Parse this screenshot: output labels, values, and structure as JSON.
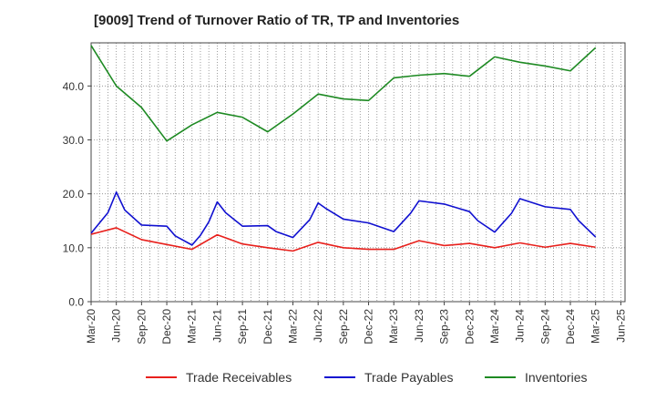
{
  "chart_data": {
    "type": "line",
    "title": "[9009]  Trend of Turnover Ratio of TR, TP and Inventories",
    "xlabel": "",
    "ylabel": "",
    "ylim": [
      0,
      48
    ],
    "yticks": [
      "0.0",
      "10.0",
      "20.0",
      "30.0",
      "40.0"
    ],
    "ytick_values": [
      0,
      10,
      20,
      30,
      40
    ],
    "xtick_labels": [
      "Mar-20",
      "Jun-20",
      "Sep-20",
      "Dec-20",
      "Mar-21",
      "Jun-21",
      "Sep-21",
      "Dec-21",
      "Mar-22",
      "Jun-22",
      "Sep-22",
      "Dec-22",
      "Mar-23",
      "Jun-23",
      "Sep-23",
      "Dec-23",
      "Mar-24",
      "Jun-24",
      "Sep-24",
      "Dec-24",
      "Mar-25",
      "Jun-25"
    ],
    "x": [
      "2020-03",
      "2020-04",
      "2020-05",
      "2020-06",
      "2020-07",
      "2020-08",
      "2020-09",
      "2020-10",
      "2020-11",
      "2020-12",
      "2021-01",
      "2021-02",
      "2021-03",
      "2021-04",
      "2021-05",
      "2021-06",
      "2021-07",
      "2021-08",
      "2021-09",
      "2021-10",
      "2021-11",
      "2021-12",
      "2022-01",
      "2022-02",
      "2022-03",
      "2022-04",
      "2022-05",
      "2022-06",
      "2022-07",
      "2022-08",
      "2022-09",
      "2022-10",
      "2022-11",
      "2022-12",
      "2023-01",
      "2023-02",
      "2023-03",
      "2023-04",
      "2023-05",
      "2023-06",
      "2023-07",
      "2023-08",
      "2023-09",
      "2023-10",
      "2023-11",
      "2023-12",
      "2024-01",
      "2024-02",
      "2024-03",
      "2024-04",
      "2024-05",
      "2024-06",
      "2024-07",
      "2024-08",
      "2024-09",
      "2024-10",
      "2024-11",
      "2024-12",
      "2025-01",
      "2025-02",
      "2025-03",
      "2025-04",
      "2025-05",
      "2025-06"
    ],
    "grid": true,
    "legend_position": "bottom",
    "series": [
      {
        "name": "Trade Receivables",
        "color": "#e8201c",
        "points": [
          [
            "2020-03",
            12.5
          ],
          [
            "2020-06",
            13.7
          ],
          [
            "2020-09",
            11.5
          ],
          [
            "2020-12",
            10.6
          ],
          [
            "2021-03",
            9.7
          ],
          [
            "2021-06",
            12.4
          ],
          [
            "2021-09",
            10.7
          ],
          [
            "2021-12",
            10.0
          ],
          [
            "2022-03",
            9.4
          ],
          [
            "2022-06",
            11.0
          ],
          [
            "2022-09",
            10.0
          ],
          [
            "2022-12",
            9.7
          ],
          [
            "2023-03",
            9.7
          ],
          [
            "2023-06",
            11.3
          ],
          [
            "2023-09",
            10.4
          ],
          [
            "2023-12",
            10.8
          ],
          [
            "2024-03",
            10.0
          ],
          [
            "2024-06",
            10.9
          ],
          [
            "2024-09",
            10.1
          ],
          [
            "2024-12",
            10.8
          ],
          [
            "2025-03",
            10.1
          ]
        ]
      },
      {
        "name": "Trade Payables",
        "color": "#1010d0",
        "points": [
          [
            "2020-03",
            12.7
          ],
          [
            "2020-05",
            16.5
          ],
          [
            "2020-06",
            20.3
          ],
          [
            "2020-07",
            17.0
          ],
          [
            "2020-09",
            14.2
          ],
          [
            "2020-12",
            14.0
          ],
          [
            "2021-01",
            12.2
          ],
          [
            "2021-03",
            10.5
          ],
          [
            "2021-04",
            12.3
          ],
          [
            "2021-05",
            14.8
          ],
          [
            "2021-06",
            18.5
          ],
          [
            "2021-07",
            16.5
          ],
          [
            "2021-09",
            14.0
          ],
          [
            "2021-12",
            14.1
          ],
          [
            "2022-01",
            13.0
          ],
          [
            "2022-03",
            11.9
          ],
          [
            "2022-05",
            15.2
          ],
          [
            "2022-06",
            18.3
          ],
          [
            "2022-07",
            17.2
          ],
          [
            "2022-09",
            15.3
          ],
          [
            "2022-12",
            14.6
          ],
          [
            "2023-03",
            13.0
          ],
          [
            "2023-05",
            16.4
          ],
          [
            "2023-06",
            18.7
          ],
          [
            "2023-09",
            18.1
          ],
          [
            "2023-12",
            16.7
          ],
          [
            "2024-01",
            15.0
          ],
          [
            "2024-03",
            12.9
          ],
          [
            "2024-05",
            16.4
          ],
          [
            "2024-06",
            19.1
          ],
          [
            "2024-09",
            17.6
          ],
          [
            "2024-12",
            17.1
          ],
          [
            "2025-01",
            15.0
          ],
          [
            "2025-03",
            12.0
          ]
        ]
      },
      {
        "name": "Inventories",
        "color": "#1e8a23",
        "points": [
          [
            "2020-03",
            47.5
          ],
          [
            "2020-06",
            40.0
          ],
          [
            "2020-09",
            36.0
          ],
          [
            "2020-12",
            29.8
          ],
          [
            "2021-03",
            32.8
          ],
          [
            "2021-06",
            35.1
          ],
          [
            "2021-09",
            34.2
          ],
          [
            "2021-12",
            31.5
          ],
          [
            "2022-03",
            34.8
          ],
          [
            "2022-06",
            38.5
          ],
          [
            "2022-09",
            37.6
          ],
          [
            "2022-12",
            37.3
          ],
          [
            "2023-03",
            41.5
          ],
          [
            "2023-06",
            42.0
          ],
          [
            "2023-09",
            42.3
          ],
          [
            "2023-12",
            41.8
          ],
          [
            "2024-03",
            45.4
          ],
          [
            "2024-06",
            44.4
          ],
          [
            "2024-09",
            43.7
          ],
          [
            "2024-12",
            42.8
          ],
          [
            "2025-03",
            47.1
          ]
        ]
      }
    ]
  }
}
